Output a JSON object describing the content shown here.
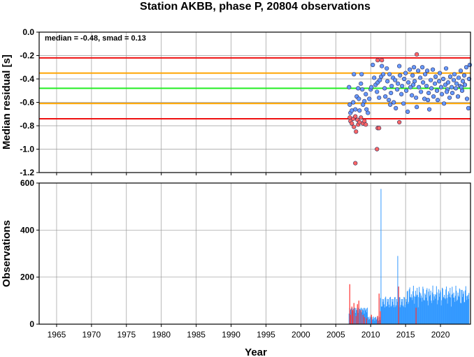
{
  "title": "Station AKBB, phase P, 20804 observations",
  "xlabel": "Year",
  "colors": {
    "median_line": "#22ee22",
    "smad_line": "#ffa500",
    "limit_line": "#ee1111",
    "point_normal": "#6699ff",
    "point_outlier": "#ff6666",
    "bar_normal": "#3399ff",
    "bar_outlier": "#ff3333",
    "grid": "#9a9a9a"
  },
  "chart_data": [
    {
      "type": "scatter",
      "ylabel": "Median residual [s]",
      "annotation": "median = -0.48, smad = 0.13",
      "xlim": [
        1962.5,
        2024.3
      ],
      "ylim": [
        -1.2,
        0.0
      ],
      "xticks": [
        1965,
        1970,
        1975,
        1980,
        1985,
        1990,
        1995,
        2000,
        2005,
        2010,
        2015,
        2020
      ],
      "yticks": [
        "0.0",
        "-0.2",
        "-0.4",
        "-0.6",
        "-0.8",
        "-1.0",
        "-1.2"
      ],
      "grid": true,
      "hlines": [
        {
          "y": -0.22,
          "role": "upper limit",
          "color": "#ee1111"
        },
        {
          "y": -0.35,
          "role": "median + smad",
          "color": "#ffa500"
        },
        {
          "y": -0.48,
          "role": "median",
          "color": "#22ee22"
        },
        {
          "y": -0.61,
          "role": "median - smad",
          "color": "#ffa500"
        },
        {
          "y": -0.74,
          "role": "lower limit",
          "color": "#ee1111"
        }
      ],
      "series": [
        {
          "points": [
            [
              2006.9,
              -0.47
            ],
            [
              2007.0,
              -0.62
            ],
            [
              2007.1,
              -0.69
            ],
            [
              2007.3,
              -0.67
            ],
            [
              2007.5,
              -0.6
            ],
            [
              2007.6,
              -0.36
            ],
            [
              2007.8,
              -0.66
            ],
            [
              2008.0,
              -0.55
            ],
            [
              2008.2,
              -0.48
            ],
            [
              2008.3,
              -0.57
            ],
            [
              2008.4,
              -0.67
            ],
            [
              2008.6,
              -0.44
            ],
            [
              2008.7,
              -0.36
            ],
            [
              2008.8,
              -0.49
            ],
            [
              2008.9,
              -0.62
            ],
            [
              2009.1,
              -0.59
            ],
            [
              2009.3,
              -0.53
            ],
            [
              2009.4,
              -0.66
            ],
            [
              2009.6,
              -0.69
            ],
            [
              2009.8,
              -0.57
            ],
            [
              2010.0,
              -0.49
            ],
            [
              2010.1,
              -0.47
            ],
            [
              2010.3,
              -0.28
            ],
            [
              2010.5,
              -0.39
            ],
            [
              2010.7,
              -0.45
            ],
            [
              2010.9,
              -0.51
            ],
            [
              2011.0,
              -0.43
            ],
            [
              2011.2,
              -0.56
            ],
            [
              2011.3,
              -0.41
            ],
            [
              2011.5,
              -0.38
            ],
            [
              2011.6,
              -0.29
            ],
            [
              2011.8,
              -0.36
            ],
            [
              2012.0,
              -0.48
            ],
            [
              2012.1,
              -0.55
            ],
            [
              2012.3,
              -0.31
            ],
            [
              2012.4,
              -0.42
            ],
            [
              2012.6,
              -0.58
            ],
            [
              2012.7,
              -0.36
            ],
            [
              2012.9,
              -0.52
            ],
            [
              2013.0,
              -0.46
            ],
            [
              2013.2,
              -0.39
            ],
            [
              2013.3,
              -0.6
            ],
            [
              2013.5,
              -0.41
            ],
            [
              2013.6,
              -0.65
            ],
            [
              2013.8,
              -0.49
            ],
            [
              2013.9,
              -0.44
            ],
            [
              2014.1,
              -0.29
            ],
            [
              2014.2,
              -0.37
            ],
            [
              2014.4,
              -0.53
            ],
            [
              2014.5,
              -0.46
            ],
            [
              2014.7,
              -0.61
            ],
            [
              2014.8,
              -0.4
            ],
            [
              2015.0,
              -0.35
            ],
            [
              2015.1,
              -0.5
            ],
            [
              2015.3,
              -0.68
            ],
            [
              2015.4,
              -0.43
            ],
            [
              2015.6,
              -0.32
            ],
            [
              2015.7,
              -0.47
            ],
            [
              2015.9,
              -0.54
            ],
            [
              2016.0,
              -0.37
            ],
            [
              2016.2,
              -0.3
            ],
            [
              2016.3,
              -0.42
            ],
            [
              2016.5,
              -0.56
            ],
            [
              2016.6,
              -0.64
            ],
            [
              2016.8,
              -0.33
            ],
            [
              2016.9,
              -0.47
            ],
            [
              2017.1,
              -0.39
            ],
            [
              2017.2,
              -0.51
            ],
            [
              2017.4,
              -0.3
            ],
            [
              2017.5,
              -0.43
            ],
            [
              2017.7,
              -0.57
            ],
            [
              2017.8,
              -0.36
            ],
            [
              2018.0,
              -0.46
            ],
            [
              2018.1,
              -0.33
            ],
            [
              2018.3,
              -0.52
            ],
            [
              2018.4,
              -0.66
            ],
            [
              2018.6,
              -0.41
            ],
            [
              2018.7,
              -0.48
            ],
            [
              2018.9,
              -0.32
            ],
            [
              2019.0,
              -0.55
            ],
            [
              2019.2,
              -0.44
            ],
            [
              2019.3,
              -0.38
            ],
            [
              2019.5,
              -0.5
            ],
            [
              2019.6,
              -0.58
            ],
            [
              2019.8,
              -0.42
            ],
            [
              2019.9,
              -0.35
            ],
            [
              2020.1,
              -0.47
            ],
            [
              2020.2,
              -0.53
            ],
            [
              2020.4,
              -0.4
            ],
            [
              2020.5,
              -0.61
            ],
            [
              2020.7,
              -0.45
            ],
            [
              2020.8,
              -0.31
            ],
            [
              2021.0,
              -0.49
            ],
            [
              2021.1,
              -0.43
            ],
            [
              2021.3,
              -0.56
            ],
            [
              2021.4,
              -0.38
            ],
            [
              2021.6,
              -0.47
            ],
            [
              2021.7,
              -0.52
            ],
            [
              2021.9,
              -0.41
            ],
            [
              2022.0,
              -0.36
            ],
            [
              2022.2,
              -0.48
            ],
            [
              2022.3,
              -0.44
            ],
            [
              2022.5,
              -0.55
            ],
            [
              2022.6,
              -0.39
            ],
            [
              2022.8,
              -0.46
            ],
            [
              2022.9,
              -0.33
            ],
            [
              2023.1,
              -0.5
            ],
            [
              2023.2,
              -0.42
            ],
            [
              2023.4,
              -0.37
            ],
            [
              2023.5,
              -0.45
            ],
            [
              2023.7,
              -0.3
            ],
            [
              2023.8,
              -0.57
            ],
            [
              2024.0,
              -0.65
            ],
            [
              2024.1,
              -0.4
            ],
            [
              2024.2,
              -0.28
            ],
            [
              2012.8,
              -0.62
            ],
            [
              2016.1,
              -0.45
            ],
            [
              2018.2,
              -0.58
            ],
            [
              2020.9,
              -0.51
            ],
            [
              2023.0,
              -0.47
            ]
          ]
        },
        {
          "outlier": true,
          "points": [
            [
              2007.0,
              -0.73
            ],
            [
              2007.1,
              -0.76
            ],
            [
              2007.3,
              -0.78
            ],
            [
              2007.5,
              -0.74
            ],
            [
              2007.6,
              -0.81
            ],
            [
              2007.8,
              -0.72
            ],
            [
              2007.9,
              -0.85
            ],
            [
              2008.1,
              -0.75
            ],
            [
              2008.2,
              -0.79
            ],
            [
              2008.4,
              -0.77
            ],
            [
              2008.6,
              -0.73
            ],
            [
              2008.9,
              -0.78
            ],
            [
              2009.1,
              -0.76
            ],
            [
              2009.3,
              -0.79
            ],
            [
              2007.8,
              -1.12
            ],
            [
              2010.9,
              -1.0
            ],
            [
              2011.0,
              -0.82
            ],
            [
              2011.2,
              -0.82
            ],
            [
              2011.0,
              -0.24
            ],
            [
              2011.6,
              -0.24
            ],
            [
              2014.1,
              -0.77
            ],
            [
              2016.6,
              -0.19
            ]
          ]
        }
      ]
    },
    {
      "type": "bar",
      "ylabel": "Observations",
      "xlim": [
        1962.5,
        2024.3
      ],
      "ylim": [
        0,
        600
      ],
      "xticks": [
        1965,
        1970,
        1975,
        1980,
        1985,
        1990,
        1995,
        2000,
        2005,
        2010,
        2015,
        2020
      ],
      "yticks": [
        "0",
        "200",
        "400",
        "600"
      ],
      "grid": true,
      "bar_width_years": 0.075,
      "series": [
        {
          "x_start": 2006.9,
          "x_step": 0.075,
          "count": 230
        },
        {
          "outlier": true,
          "x": [
            2007.0,
            2007.1,
            2007.3,
            2007.4,
            2007.6,
            2007.9,
            2008.1,
            2008.3,
            2008.6,
            2008.9,
            2009.1,
            2009.4,
            2010.1,
            2011.0,
            2011.2,
            2011.4,
            2014.0,
            2016.5
          ],
          "values": [
            170,
            40,
            75,
            60,
            90,
            35,
            85,
            100,
            60,
            40,
            30,
            25,
            40,
            35,
            130,
            55,
            160,
            70
          ]
        }
      ],
      "highlights": [
        {
          "x": 2011.5,
          "value": 575
        },
        {
          "x": 2013.9,
          "value": 290
        }
      ]
    }
  ]
}
